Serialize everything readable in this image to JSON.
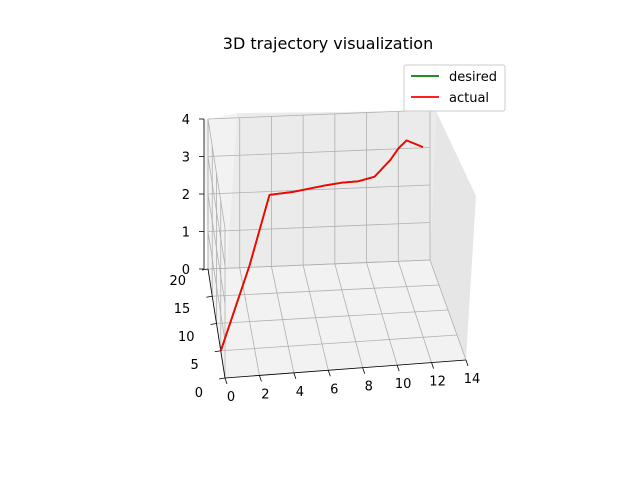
{
  "chart_data": {
    "type": "line",
    "title": "3D trajectory visualization",
    "xlabel": "",
    "ylabel": "",
    "zlabel": "",
    "xlim": [
      0,
      14
    ],
    "ylim": [
      0,
      20
    ],
    "zlim": [
      0,
      4
    ],
    "x_ticks": [
      "0",
      "2",
      "4",
      "6",
      "8",
      "10",
      "12",
      "14"
    ],
    "y_ticks": [
      "0",
      "5",
      "10",
      "15",
      "20"
    ],
    "z_ticks": [
      "0",
      "1",
      "2",
      "3",
      "4"
    ],
    "grid": true,
    "legend_position": "top-right",
    "series": [
      {
        "name": "desired",
        "color": "#008000",
        "x": [
          0,
          2,
          3.5,
          5,
          6,
          7,
          8,
          9,
          10,
          11,
          11.5,
          12,
          12.5,
          13
        ],
        "y": [
          5,
          10,
          14.5,
          14.5,
          14.6,
          14.7,
          14.7,
          14.8,
          14.8,
          15,
          15,
          15,
          15,
          15
        ],
        "z": [
          0,
          1.5,
          2.7,
          2.75,
          2.8,
          2.85,
          2.9,
          2.9,
          3.0,
          3.4,
          3.7,
          3.9,
          3.8,
          3.7
        ]
      },
      {
        "name": "actual",
        "color": "#ff0000",
        "x": [
          0,
          2,
          3.5,
          5,
          6,
          7,
          8,
          9,
          10,
          11,
          11.5,
          12,
          12.5,
          13
        ],
        "y": [
          5,
          10,
          14.5,
          14.5,
          14.6,
          14.7,
          14.7,
          14.8,
          14.8,
          15,
          15,
          15,
          15,
          15
        ],
        "z": [
          0,
          1.5,
          2.7,
          2.75,
          2.8,
          2.85,
          2.9,
          2.9,
          3.0,
          3.4,
          3.7,
          3.9,
          3.8,
          3.7
        ]
      }
    ]
  }
}
